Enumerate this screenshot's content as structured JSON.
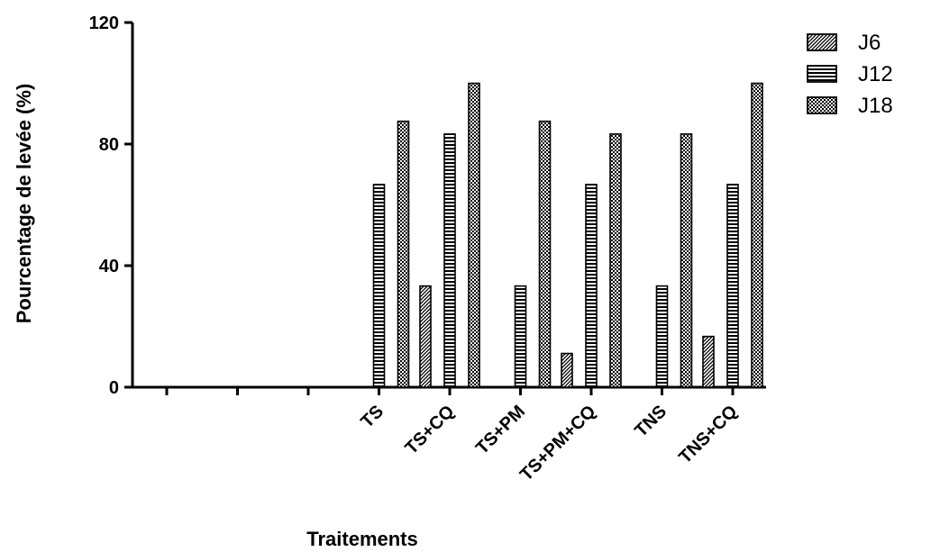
{
  "chart_data": {
    "type": "bar",
    "xlabel": "Traitements",
    "ylabel": "Pourcentage de levée (%)",
    "ylim": [
      0,
      120
    ],
    "yticks": [
      0,
      40,
      80,
      120
    ],
    "x_slots": [
      "",
      "",
      "",
      "TS",
      "TS+CQ",
      "TS+PM",
      "TS+PM+CQ",
      "TNS",
      "TNS+CQ"
    ],
    "categories": [
      "TS",
      "TS+CQ",
      "TS+PM",
      "TS+PM+CQ",
      "TNS",
      "TNS+CQ"
    ],
    "series": [
      {
        "name": "J6",
        "pattern": "diagonal",
        "values": [
          0,
          33.3,
          0,
          11.1,
          0,
          16.7
        ]
      },
      {
        "name": "J12",
        "pattern": "horizontal",
        "values": [
          66.7,
          83.3,
          33.3,
          66.7,
          33.3,
          66.7
        ]
      },
      {
        "name": "J18",
        "pattern": "checker",
        "values": [
          87.5,
          100,
          87.5,
          83.3,
          83.3,
          100
        ]
      }
    ],
    "legend": "top-right",
    "grid": false,
    "bar_color": "#000000"
  }
}
